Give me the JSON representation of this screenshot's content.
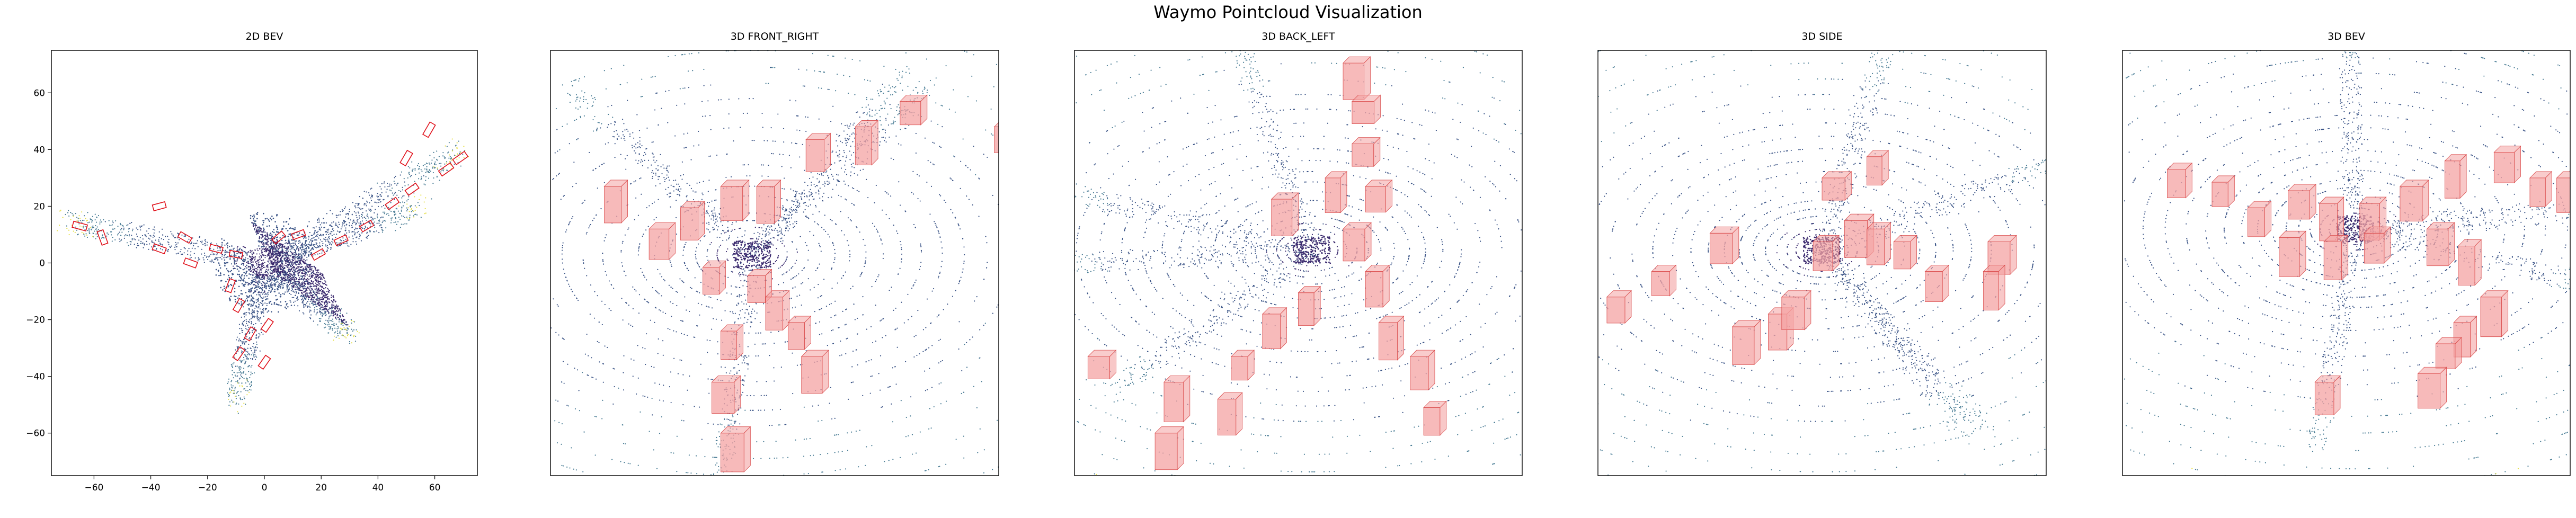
{
  "figure": {
    "title": "Waymo Pointcloud Visualization"
  },
  "panels": [
    {
      "title": "2D BEV"
    },
    {
      "title": "3D FRONT_RIGHT"
    },
    {
      "title": "3D BACK_LEFT"
    },
    {
      "title": "3D SIDE"
    },
    {
      "title": "3D BEV"
    }
  ],
  "colors": {
    "points_near": "#3b2a6e",
    "points_mid": "#4a7d95",
    "points_far": "#e6e04a",
    "box_2d": "#e0101a",
    "box_3d_fill": "#f4a3a3",
    "box_3d_edge": "#d94a4a"
  },
  "chart_data": [
    {
      "type": "scatter",
      "title": "2D BEV",
      "xlabel": "",
      "ylabel": "",
      "xlim": [
        -75,
        75
      ],
      "ylim": [
        -75,
        75
      ],
      "xticks": [
        -60,
        -40,
        -20,
        0,
        20,
        40,
        60
      ],
      "yticks": [
        -60,
        -40,
        -20,
        0,
        20,
        40,
        60
      ],
      "grid": false,
      "boxes_2d": [
        {
          "x": -65,
          "y": 13,
          "len": 5,
          "wid": 2.2,
          "heading": -15
        },
        {
          "x": -57,
          "y": 9,
          "len": 5,
          "wid": 2.2,
          "heading": -70
        },
        {
          "x": -37,
          "y": 20,
          "len": 4.5,
          "wid": 2.1,
          "heading": 15
        },
        {
          "x": -28,
          "y": 9,
          "len": 4.5,
          "wid": 2.1,
          "heading": -30
        },
        {
          "x": -37,
          "y": 5,
          "len": 4.5,
          "wid": 2.1,
          "heading": -20
        },
        {
          "x": -26,
          "y": 0,
          "len": 4.5,
          "wid": 2.1,
          "heading": -20
        },
        {
          "x": -17,
          "y": 5,
          "len": 4.5,
          "wid": 2.1,
          "heading": -15
        },
        {
          "x": -10,
          "y": 3,
          "len": 4.5,
          "wid": 2.1,
          "heading": -10
        },
        {
          "x": -12,
          "y": -8,
          "len": 4.5,
          "wid": 2.1,
          "heading": 70
        },
        {
          "x": -9,
          "y": -15,
          "len": 4.5,
          "wid": 2.1,
          "heading": 60
        },
        {
          "x": -5,
          "y": -25,
          "len": 4.5,
          "wid": 2.1,
          "heading": 60
        },
        {
          "x": -9,
          "y": -32,
          "len": 4.5,
          "wid": 2.1,
          "heading": 55
        },
        {
          "x": 0,
          "y": -35,
          "len": 4.5,
          "wid": 2.1,
          "heading": 55
        },
        {
          "x": 1,
          "y": -22,
          "len": 4.5,
          "wid": 2.1,
          "heading": 55
        },
        {
          "x": 5,
          "y": 9,
          "len": 4.5,
          "wid": 2.1,
          "heading": 40
        },
        {
          "x": 12,
          "y": 10,
          "len": 4.5,
          "wid": 2.1,
          "heading": 20
        },
        {
          "x": 27,
          "y": 8,
          "len": 4.5,
          "wid": 2.1,
          "heading": 25
        },
        {
          "x": 19,
          "y": 3,
          "len": 4.5,
          "wid": 2.1,
          "heading": 30
        },
        {
          "x": 36,
          "y": 13,
          "len": 4.5,
          "wid": 2.1,
          "heading": 30
        },
        {
          "x": 45,
          "y": 21,
          "len": 4.5,
          "wid": 2.1,
          "heading": 35
        },
        {
          "x": 52,
          "y": 26,
          "len": 4.5,
          "wid": 2.1,
          "heading": 35
        },
        {
          "x": 50,
          "y": 37,
          "len": 5,
          "wid": 2.2,
          "heading": 60
        },
        {
          "x": 58,
          "y": 47,
          "len": 5,
          "wid": 2.2,
          "heading": 60
        },
        {
          "x": 64,
          "y": 33,
          "len": 5,
          "wid": 2.2,
          "heading": 35
        },
        {
          "x": 69,
          "y": 37,
          "len": 5,
          "wid": 2.2,
          "heading": 35
        }
      ]
    },
    {
      "type": "scatter",
      "title": "3D FRONT_RIGHT",
      "view": "front_right",
      "grid": false
    },
    {
      "type": "scatter",
      "title": "3D BACK_LEFT",
      "view": "back_left",
      "grid": false
    },
    {
      "type": "scatter",
      "title": "3D SIDE",
      "view": "side",
      "grid": false
    },
    {
      "type": "scatter",
      "title": "3D BEV",
      "view": "bev",
      "grid": false
    }
  ]
}
